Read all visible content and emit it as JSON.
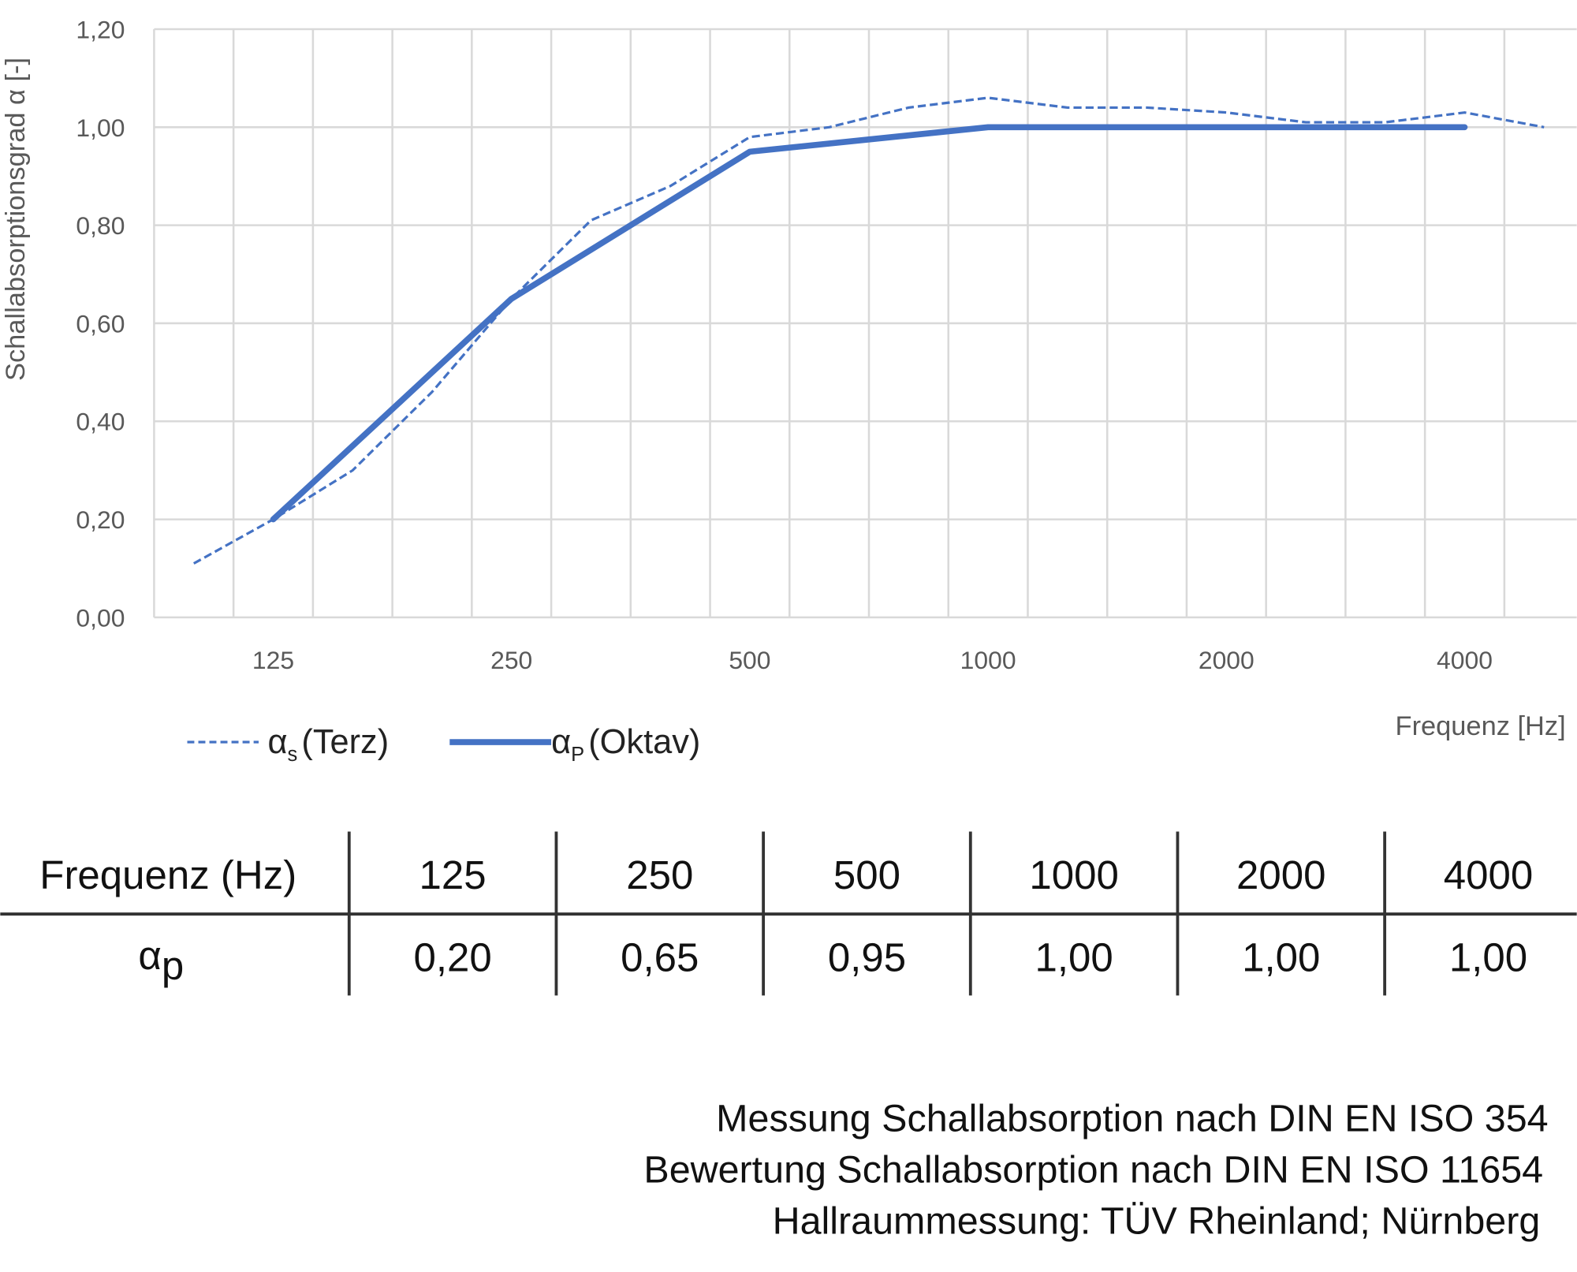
{
  "chart_data": {
    "type": "line",
    "ylabel": "Schallabsorptionsgrad α [-]",
    "xlabel": "Frequenz [Hz]",
    "ylim": [
      0,
      1.2
    ],
    "y_ticks": [
      "0,00",
      "0,20",
      "0,40",
      "0,60",
      "0,80",
      "1,00",
      "1,20"
    ],
    "x_categories": [
      100,
      125,
      160,
      200,
      250,
      315,
      400,
      500,
      630,
      800,
      1000,
      1250,
      1600,
      2000,
      2500,
      3150,
      4000,
      5000
    ],
    "x_tick_labels": [
      "125",
      "250",
      "500",
      "1000",
      "2000",
      "4000"
    ],
    "grid": true,
    "legend_position": "bottom-left",
    "series": [
      {
        "name": "αs (Terz)",
        "legend": {
          "symbol": "α",
          "sub": "s",
          "text": "(Terz)"
        },
        "style": "dashed",
        "color": "#4472C4",
        "x": [
          100,
          125,
          160,
          200,
          250,
          315,
          400,
          500,
          630,
          800,
          1000,
          1250,
          1600,
          2000,
          2500,
          3150,
          4000,
          5000
        ],
        "values": [
          0.11,
          0.2,
          0.3,
          0.46,
          0.65,
          0.81,
          0.88,
          0.98,
          1.0,
          1.04,
          1.06,
          1.04,
          1.04,
          1.03,
          1.01,
          1.01,
          1.03,
          1.0
        ]
      },
      {
        "name": "αP (Oktav)",
        "legend": {
          "symbol": "α",
          "sub": "P",
          "text": "(Oktav)"
        },
        "style": "solid",
        "color": "#4472C4",
        "x": [
          125,
          250,
          500,
          1000,
          2000,
          4000
        ],
        "values": [
          0.2,
          0.65,
          0.95,
          1.0,
          1.0,
          1.0
        ]
      }
    ]
  },
  "table": {
    "header_label": "Frequenz (Hz)",
    "frequencies": [
      "125",
      "250",
      "500",
      "1000",
      "2000",
      "4000"
    ],
    "row_label_symbol": "α",
    "row_label_sub": "p",
    "values": [
      "0,20",
      "0,65",
      "0,95",
      "1,00",
      "1,00",
      "1,00"
    ]
  },
  "footer": [
    "Messung Schallabsorption nach DIN EN ISO 354",
    "Bewertung Schallabsorption nach DIN EN ISO 11654",
    "Hallraummessung: TÜV Rheinland; Nürnberg"
  ]
}
